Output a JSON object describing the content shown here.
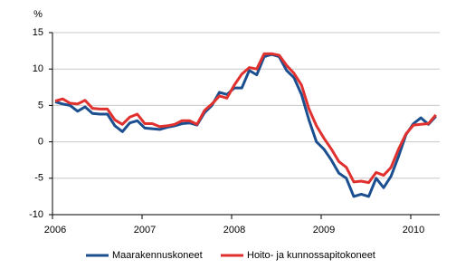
{
  "chart_data": {
    "type": "line",
    "y_label": "%",
    "categories": [
      "2006",
      null,
      null,
      null,
      null,
      null,
      null,
      null,
      null,
      null,
      null,
      null,
      "2007",
      null,
      null,
      null,
      null,
      null,
      null,
      null,
      null,
      null,
      null,
      null,
      "2008",
      null,
      null,
      null,
      null,
      null,
      null,
      null,
      null,
      null,
      null,
      null,
      "2009",
      null,
      null,
      null,
      null,
      null,
      null,
      null,
      null,
      null,
      null,
      null,
      "2010",
      null,
      null,
      null
    ],
    "series": [
      {
        "name": "Maarakennuskoneet",
        "color": "#1c4f8f",
        "values": [
          5.5,
          5.2,
          5.0,
          4.2,
          4.8,
          3.9,
          3.8,
          3.8,
          2.2,
          1.4,
          2.6,
          2.9,
          1.9,
          1.8,
          1.7,
          2.0,
          2.2,
          2.5,
          2.6,
          2.3,
          4.0,
          5.0,
          6.8,
          6.5,
          7.4,
          7.4,
          9.8,
          9.2,
          11.7,
          12.0,
          11.7,
          9.8,
          8.8,
          6.5,
          3.0,
          0.0,
          -1.0,
          -2.5,
          -4.3,
          -5.0,
          -7.5,
          -7.2,
          -7.5,
          -5.0,
          -6.3,
          -4.7,
          -2.0,
          1.0,
          2.5,
          3.3,
          2.4,
          3.5
        ]
      },
      {
        "name": "Hoito- ja kunnossapitokoneet",
        "color": "#e0312f",
        "values": [
          5.6,
          5.9,
          5.3,
          5.2,
          5.7,
          4.6,
          4.5,
          4.5,
          3.0,
          2.4,
          3.4,
          3.8,
          2.5,
          2.5,
          2.1,
          2.2,
          2.4,
          2.9,
          2.9,
          2.4,
          4.3,
          5.2,
          6.3,
          6.0,
          7.8,
          9.3,
          10.2,
          10.0,
          12.1,
          12.1,
          11.9,
          10.5,
          9.4,
          7.8,
          4.5,
          2.2,
          0.5,
          -1.0,
          -2.7,
          -3.5,
          -5.5,
          -5.4,
          -5.6,
          -4.2,
          -4.6,
          -3.5,
          -1.0,
          1.1,
          2.3,
          2.4,
          2.5,
          3.7
        ]
      }
    ],
    "ylim": [
      -10,
      15
    ],
    "yticks": [
      -10,
      -5,
      0,
      5,
      10,
      15
    ],
    "grid": true,
    "legend": "bottom"
  }
}
